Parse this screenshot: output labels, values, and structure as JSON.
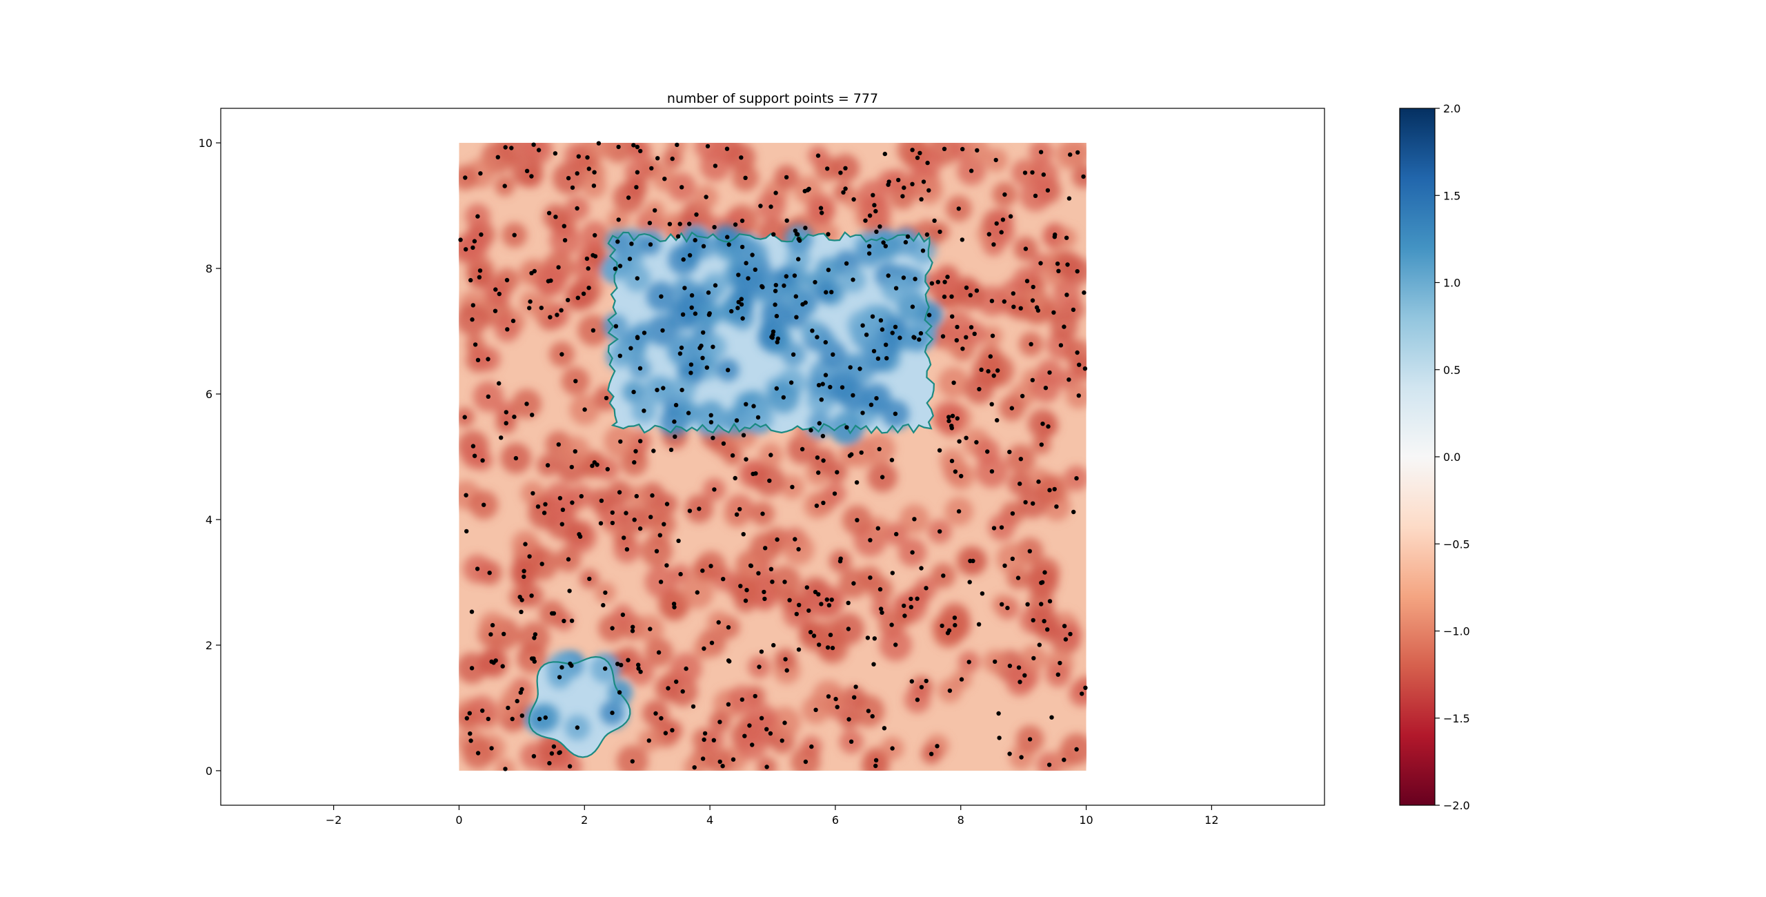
{
  "chart_data": {
    "type": "heatmap",
    "title": "number of support points = 777",
    "support_point_count": 777,
    "xlabel": "",
    "ylabel": "",
    "xlim": [
      -3.8,
      13.8
    ],
    "ylim": [
      -0.55,
      10.55
    ],
    "data_extent": {
      "x": [
        0,
        10
      ],
      "y": [
        0,
        10
      ]
    },
    "xticks": [
      -2,
      0,
      2,
      4,
      6,
      8,
      10,
      12
    ],
    "yticks": [
      0,
      2,
      4,
      6,
      8,
      10
    ],
    "xtick_labels": [
      "−2",
      "0",
      "2",
      "4",
      "6",
      "8",
      "10",
      "12"
    ],
    "ytick_labels": [
      "0",
      "2",
      "4",
      "6",
      "8",
      "10"
    ],
    "colormap": "RdBu",
    "color_range": [
      -2,
      2
    ],
    "colorbar": {
      "ticks": [
        2.0,
        1.5,
        1.0,
        0.5,
        0.0,
        -0.5,
        -1.0,
        -1.5,
        -2.0
      ],
      "tick_labels": [
        "2.0",
        "1.5",
        "1.0",
        "0.5",
        "0.0",
        "−0.5",
        "−1.0",
        "−1.5",
        "−2.0"
      ],
      "placement": "right"
    },
    "regions": [
      {
        "shape": "rounded-rectangle",
        "x": [
          2.45,
          7.5
        ],
        "y": [
          5.45,
          8.5
        ],
        "sign": "positive"
      },
      {
        "shape": "blob",
        "center": [
          1.9,
          1.05
        ],
        "radius": 0.75,
        "sign": "positive"
      }
    ],
    "background_sign": "negative",
    "decision_boundary": {
      "level": 0,
      "color": "#1b8a82"
    },
    "point_color": "#000000",
    "grid": false
  }
}
